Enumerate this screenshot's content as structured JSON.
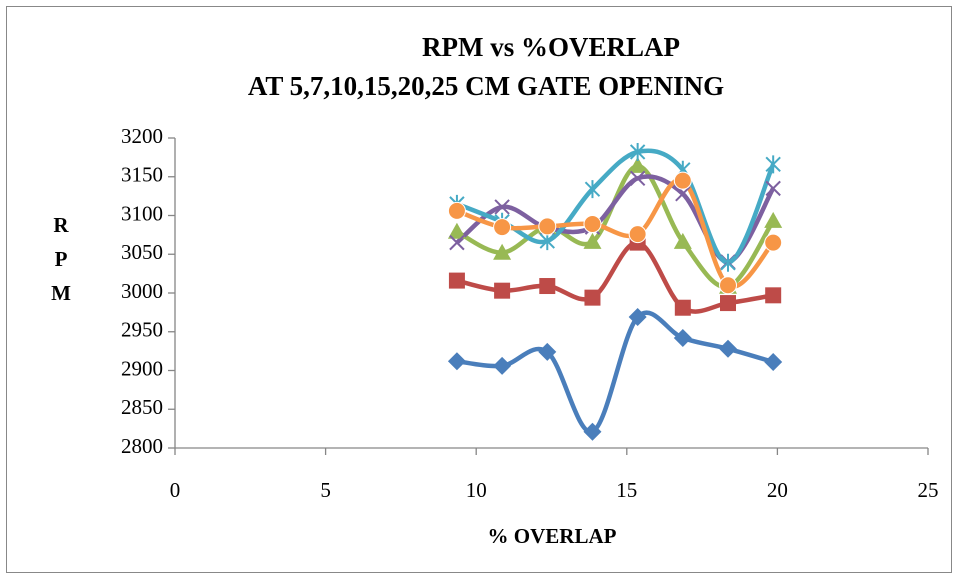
{
  "chart_data": {
    "type": "line",
    "title": [
      "RPM vs %OVERLAP",
      "AT 5,7,10,15,20,25 CM GATE OPENING"
    ],
    "x_label": "% OVERLAP",
    "y_label": "RPM",
    "x": [
      9.36,
      10.86,
      12.36,
      13.86,
      15.36,
      16.86,
      18.36,
      19.86
    ],
    "xlim": [
      0,
      25
    ],
    "xticks": [
      0,
      5,
      10,
      15,
      20,
      25
    ],
    "ylim": [
      2800,
      3200
    ],
    "yticks": [
      2800,
      2850,
      2900,
      2950,
      3000,
      3050,
      3100,
      3150,
      3200
    ],
    "smooth": true,
    "grid": false,
    "series": [
      {
        "color": "#4a7ebb",
        "marker": "diamond",
        "values": [
          2912,
          2906,
          2924,
          2821,
          2969,
          2942,
          2928,
          2911
        ]
      },
      {
        "color": "#be4b48",
        "marker": "square",
        "values": [
          3016,
          3003,
          3009,
          2994,
          3065,
          2981,
          2987,
          2997
        ]
      },
      {
        "color": "#98b954",
        "marker": "triangle",
        "values": [
          3079,
          3052,
          3085,
          3066,
          3164,
          3066,
          3008,
          3093
        ]
      },
      {
        "color": "#7d60a0",
        "marker": "x",
        "values": [
          3065,
          3111,
          3084,
          3085,
          3148,
          3128,
          3040,
          3135
        ]
      },
      {
        "color": "#46aac5",
        "marker": "star",
        "values": [
          3115,
          3092,
          3067,
          3134,
          3182,
          3159,
          3039,
          3166
        ]
      },
      {
        "color": "#f79646",
        "marker": "circle",
        "values": [
          3106,
          3085,
          3086,
          3089,
          3076,
          3145,
          3010,
          3065
        ]
      }
    ]
  }
}
